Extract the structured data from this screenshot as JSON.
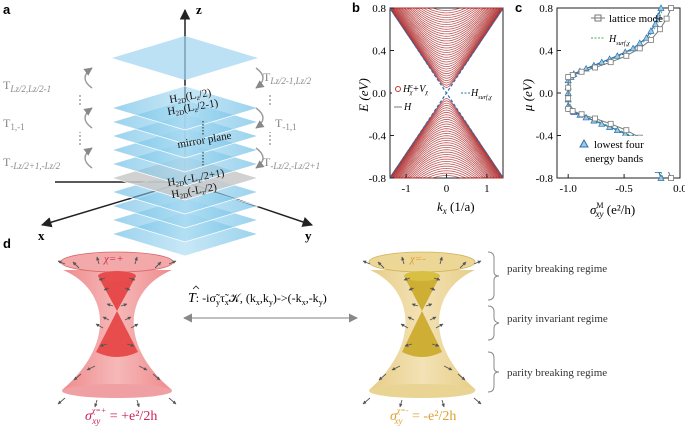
{
  "panel_labels": {
    "a": "a",
    "b": "b",
    "c": "c",
    "d": "d"
  },
  "panel_a": {
    "axis_z": "z",
    "axis_x": "x",
    "axis_y": "y",
    "left_labels": [
      "T",
      "T",
      "T"
    ],
    "left_subs": [
      "Lz/2,Lz/2-1",
      "1,-1",
      "-Lz/2+1,-Lz/2"
    ],
    "right_labels": [
      "T",
      "T",
      "T"
    ],
    "right_subs": [
      "Lz/2-1,Lz/2",
      "-1,1",
      "-Lz/2,-Lz/2+1"
    ],
    "layer_top_1": "H",
    "layer_top_1_sub": "2D",
    "layer_top_1_arg": "(L",
    "layer_top_1_arg_sub": "z",
    "layer_top_1_arg_end": "/2)",
    "layer_top_2": "H",
    "layer_top_2_sub": "2D",
    "layer_top_2_arg": "(L",
    "layer_top_2_arg_sub": "z",
    "layer_top_2_arg_end": "/2-1)",
    "mirror": "mirror plane",
    "layer_bot_1": "H",
    "layer_bot_1_sub": "2D",
    "layer_bot_1_arg": "(-L",
    "layer_bot_1_arg_sub": "z",
    "layer_bot_1_arg_end": "/2+1)",
    "layer_bot_2": "H",
    "layer_bot_2_sub": "2D",
    "layer_bot_2_arg": "(-L",
    "layer_bot_2_arg_sub": "z",
    "layer_bot_2_arg_end": "/2)"
  },
  "panel_b": {
    "ylabel": "E (eV)",
    "xlabel_main": "k",
    "xlabel_sub": "x",
    "xlabel_unit": " (1/a)",
    "legend_1": "H",
    "legend_1_sup": "c",
    "legend_1_sub": "χ",
    "legend_1_plus": "+V",
    "legend_1_plus_sub": "χ",
    "legend_2": "H",
    "legend_3": "H",
    "legend_3_sub": "surf,χ"
  },
  "panel_c": {
    "ylabel": "μ (eV)",
    "xlabel_main": "σ",
    "xlabel_sub": "xy",
    "xlabel_sup": "M",
    "xlabel_unit": " (e²/h)",
    "legend_1": "lattice mode",
    "legend_2": "H",
    "legend_2_sub": "surf,χ",
    "legend_3_line1": "lowest four",
    "legend_3_line2": "energy bands"
  },
  "panel_d": {
    "chi_left": "χ=+",
    "chi_right": "χ=-",
    "operator": "T",
    "operator_text": ":  -iσ̃",
    "operator_sub1": "y",
    "operator_tau": "τ̃",
    "operator_sub2": "x",
    "operator_k": "𝒦, (k",
    "operator_k_sub1": "x",
    "operator_k_mid": ",k",
    "operator_k_sub2": "y",
    "operator_arrow": ")->(-k",
    "operator_k_sub3": "x",
    "operator_k_mid2": ",-k",
    "operator_k_sub4": "y",
    "operator_end": ")",
    "regime_top": "parity breaking regime",
    "regime_mid": "parity invariant regime",
    "regime_bot": "parity breaking regime",
    "sigma_left_main": "σ",
    "sigma_left_sub": "xy",
    "sigma_left_sup": "χ=+",
    "sigma_left_val": " = +e²/2h",
    "sigma_right_main": "σ",
    "sigma_right_sub": "xy",
    "sigma_right_sup": "χ=-",
    "sigma_right_val": " = -e²/2h"
  },
  "chart_data": [
    {
      "type": "line",
      "panel": "b",
      "ylabel": "E (eV)",
      "xlabel": "k_x (1/a)",
      "xlim": [
        -1.4,
        1.4
      ],
      "ylim": [
        -0.8,
        0.8
      ],
      "xticks": [
        -1,
        0,
        1
      ],
      "yticks": [
        -0.8,
        -0.4,
        0.0,
        0.4,
        0.8
      ],
      "series": [
        {
          "name": "H^c_χ+V_χ",
          "description_values": "dense red bulk bands above ±gap"
        },
        {
          "name": "H"
        },
        {
          "name": "H_surf,χ",
          "x": [
            -1.4,
            0,
            1.4
          ],
          "y": [
            -0.8,
            0,
            0.8
          ]
        }
      ]
    },
    {
      "type": "line",
      "panel": "c",
      "ylabel": "μ (eV)",
      "xlabel": "σ^M_xy (e²/h)",
      "xlim": [
        -1.1,
        0.0
      ],
      "ylim": [
        -0.8,
        0.8
      ],
      "xticks": [
        -1.0,
        -0.5,
        0.0
      ],
      "yticks": [
        -0.8,
        -0.4,
        0.0,
        0.4,
        0.8
      ],
      "series": [
        {
          "name": "lattice mode",
          "x": [
            -0.08,
            -0.12,
            -0.18,
            -0.26,
            -0.36,
            -0.48,
            -0.62,
            -0.76,
            -0.88,
            -0.96,
            -1.0,
            -1.0,
            -1.0,
            -1.0,
            -0.96,
            -0.88,
            -0.76,
            -0.62,
            -0.48,
            -0.36,
            -0.26,
            -0.18,
            -0.12,
            -0.08
          ],
          "y": [
            0.8,
            0.7,
            0.6,
            0.5,
            0.42,
            0.35,
            0.29,
            0.24,
            0.2,
            0.17,
            0.15,
            0.05,
            -0.05,
            -0.15,
            -0.17,
            -0.2,
            -0.24,
            -0.29,
            -0.35,
            -0.42,
            -0.5,
            -0.6,
            -0.7,
            -0.8
          ]
        },
        {
          "name": "H_surf,χ"
        },
        {
          "name": "lowest four energy bands",
          "x": [
            -0.17,
            -0.22,
            -0.3,
            -0.42,
            -0.56,
            -0.7,
            -0.84,
            -0.95,
            -1.0,
            -1.0,
            -1.0,
            -0.95,
            -0.84,
            -0.7,
            -0.56,
            -0.42,
            -0.3,
            -0.22,
            -0.17
          ],
          "y": [
            0.8,
            0.65,
            0.52,
            0.42,
            0.35,
            0.29,
            0.23,
            0.18,
            0.12,
            0.0,
            -0.12,
            -0.18,
            -0.23,
            -0.29,
            -0.35,
            -0.42,
            -0.52,
            -0.65,
            -0.8
          ]
        }
      ]
    }
  ]
}
